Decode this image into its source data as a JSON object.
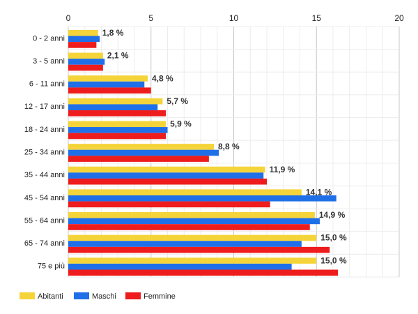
{
  "chart_data": {
    "type": "bar",
    "orientation": "horizontal",
    "categories": [
      "0 - 2 anni",
      "3 - 5 anni",
      "6 - 11 anni",
      "12 - 17 anni",
      "18 - 24 anni",
      "25 - 34 anni",
      "35 - 44 anni",
      "45 - 54 anni",
      "55 - 64 anni",
      "65 - 74 anni",
      "75 e più"
    ],
    "series": [
      {
        "name": "Abitanti",
        "color": "#f5d43a",
        "values": [
          1.8,
          2.1,
          4.8,
          5.7,
          5.9,
          8.8,
          11.9,
          14.1,
          14.9,
          15.0,
          15.0
        ]
      },
      {
        "name": "Maschi",
        "color": "#1f6fe8",
        "values": [
          1.9,
          2.2,
          4.6,
          5.4,
          6.0,
          9.1,
          11.8,
          16.2,
          15.2,
          14.1,
          13.5
        ]
      },
      {
        "name": "Femmine",
        "color": "#ee1c1c",
        "values": [
          1.7,
          2.1,
          5.0,
          5.9,
          5.9,
          8.5,
          12.0,
          12.2,
          14.6,
          15.8,
          16.3
        ]
      }
    ],
    "data_labels": [
      "1,8 %",
      "2,1 %",
      "4,8 %",
      "5,7 %",
      "5,9 %",
      "8,8 %",
      "11,9 %",
      "14,1 %",
      "14,9 %",
      "15,0 %",
      "15,0 %"
    ],
    "x_ticks": [
      "0",
      "5",
      "10",
      "15",
      "20"
    ],
    "xlim": [
      0,
      20
    ],
    "grid": true,
    "legend_position": "bottom-left"
  }
}
